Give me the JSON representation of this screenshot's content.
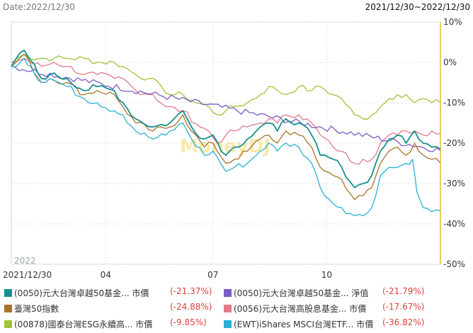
{
  "header": {
    "date_label": "Date:2022/12/30",
    "range_label": "2021/12/30~2022/12/30"
  },
  "watermark": "MoneyDJ",
  "year_label": "2022",
  "chart_data": {
    "type": "line",
    "x_labels": [
      "2021/12/30",
      "04",
      "07",
      "10"
    ],
    "y_ticks": [
      "10%",
      "0%",
      "-10%",
      "-20%",
      "-30%",
      "-40%",
      "-50%"
    ],
    "ylim": [
      -50,
      10
    ],
    "y_unit": "%",
    "grid": true,
    "series": [
      {
        "name": "(0050)元大台灣卓越50基金... 市價",
        "value_label": "(-21.37%)",
        "color": "#178f8f",
        "points": [
          [
            0,
            -1
          ],
          [
            0.03,
            3
          ],
          [
            0.045,
            0.5
          ],
          [
            0.07,
            -4
          ],
          [
            0.09,
            -3
          ],
          [
            0.13,
            -4
          ],
          [
            0.17,
            -7
          ],
          [
            0.2,
            -6
          ],
          [
            0.24,
            -7
          ],
          [
            0.26,
            -10
          ],
          [
            0.29,
            -14
          ],
          [
            0.33,
            -16
          ],
          [
            0.37,
            -15
          ],
          [
            0.4,
            -12
          ],
          [
            0.42,
            -16
          ],
          [
            0.45,
            -19
          ],
          [
            0.47,
            -18
          ],
          [
            0.5,
            -23
          ],
          [
            0.52,
            -21
          ],
          [
            0.55,
            -19
          ],
          [
            0.58,
            -16
          ],
          [
            0.6,
            -15
          ],
          [
            0.62,
            -17
          ],
          [
            0.64,
            -14
          ],
          [
            0.67,
            -15
          ],
          [
            0.7,
            -18
          ],
          [
            0.72,
            -23
          ],
          [
            0.75,
            -24
          ],
          [
            0.77,
            -26
          ],
          [
            0.8,
            -31
          ],
          [
            0.82,
            -30
          ],
          [
            0.84,
            -28
          ],
          [
            0.86,
            -22
          ],
          [
            0.88,
            -19
          ],
          [
            0.9,
            -18
          ],
          [
            0.92,
            -20
          ],
          [
            0.94,
            -17
          ],
          [
            0.96,
            -20
          ],
          [
            0.98,
            -21
          ],
          [
            1,
            -21.4
          ]
        ]
      },
      {
        "name": "(0050)元大台灣卓越50基金... 淨值",
        "value_label": "(-21.79%)",
        "color": "#7b5cc4",
        "points": [
          [
            0,
            -1
          ],
          [
            1,
            -21.8
          ]
        ]
      },
      {
        "name": "臺灣50指數",
        "value_label": "(-24.88%)",
        "color": "#a8742a",
        "points": [
          [
            0,
            -1
          ],
          [
            0.03,
            2
          ],
          [
            0.045,
            -0.5
          ],
          [
            0.07,
            -5
          ],
          [
            0.09,
            -4
          ],
          [
            0.13,
            -5
          ],
          [
            0.17,
            -8
          ],
          [
            0.2,
            -7
          ],
          [
            0.24,
            -8
          ],
          [
            0.26,
            -11
          ],
          [
            0.29,
            -15
          ],
          [
            0.33,
            -17
          ],
          [
            0.37,
            -16
          ],
          [
            0.4,
            -13
          ],
          [
            0.42,
            -17
          ],
          [
            0.45,
            -21
          ],
          [
            0.47,
            -20
          ],
          [
            0.5,
            -25
          ],
          [
            0.52,
            -24
          ],
          [
            0.55,
            -22
          ],
          [
            0.58,
            -19
          ],
          [
            0.6,
            -18
          ],
          [
            0.62,
            -20
          ],
          [
            0.64,
            -17
          ],
          [
            0.67,
            -18
          ],
          [
            0.7,
            -21
          ],
          [
            0.72,
            -26
          ],
          [
            0.75,
            -28
          ],
          [
            0.77,
            -29
          ],
          [
            0.8,
            -34
          ],
          [
            0.82,
            -33
          ],
          [
            0.84,
            -31
          ],
          [
            0.86,
            -25
          ],
          [
            0.88,
            -22
          ],
          [
            0.9,
            -21
          ],
          [
            0.92,
            -23
          ],
          [
            0.94,
            -20
          ],
          [
            0.96,
            -23
          ],
          [
            0.98,
            -24
          ],
          [
            1,
            -24.9
          ]
        ]
      },
      {
        "name": "(0056)元大台灣高股息基金... 市價",
        "value_label": "(-17.67%)",
        "color": "#e07a8a",
        "points": [
          [
            0,
            0
          ],
          [
            0.03,
            1
          ],
          [
            0.045,
            0
          ],
          [
            0.07,
            -1
          ],
          [
            0.1,
            0
          ],
          [
            0.13,
            -1
          ],
          [
            0.17,
            -3
          ],
          [
            0.2,
            -3
          ],
          [
            0.24,
            -4
          ],
          [
            0.26,
            -4
          ],
          [
            0.29,
            -7
          ],
          [
            0.33,
            -8
          ],
          [
            0.36,
            -11
          ],
          [
            0.4,
            -12
          ],
          [
            0.44,
            -16
          ],
          [
            0.46,
            -17
          ],
          [
            0.48,
            -20
          ],
          [
            0.5,
            -18
          ],
          [
            0.52,
            -17
          ],
          [
            0.55,
            -16
          ],
          [
            0.58,
            -15
          ],
          [
            0.6,
            -14
          ],
          [
            0.62,
            -15
          ],
          [
            0.64,
            -13
          ],
          [
            0.67,
            -13
          ],
          [
            0.7,
            -15
          ],
          [
            0.72,
            -18
          ],
          [
            0.75,
            -21
          ],
          [
            0.77,
            -22
          ],
          [
            0.8,
            -25
          ],
          [
            0.82,
            -24
          ],
          [
            0.84,
            -24
          ],
          [
            0.86,
            -20
          ],
          [
            0.88,
            -18
          ],
          [
            0.9,
            -18
          ],
          [
            0.92,
            -17
          ],
          [
            0.94,
            -17
          ],
          [
            0.96,
            -18
          ],
          [
            0.98,
            -17
          ],
          [
            1,
            -17.7
          ]
        ]
      },
      {
        "name": "(00878)國泰台灣ESG永續高... 市價",
        "value_label": "(-9.85%)",
        "color": "#a0c43a",
        "points": [
          [
            0,
            0
          ],
          [
            0.03,
            2
          ],
          [
            0.045,
            1
          ],
          [
            0.07,
            1
          ],
          [
            0.1,
            1
          ],
          [
            0.13,
            1
          ],
          [
            0.17,
            1
          ],
          [
            0.2,
            0
          ],
          [
            0.24,
            0
          ],
          [
            0.26,
            -1
          ],
          [
            0.29,
            -3
          ],
          [
            0.32,
            -4
          ],
          [
            0.35,
            -6
          ],
          [
            0.37,
            -8
          ],
          [
            0.4,
            -8
          ],
          [
            0.43,
            -10
          ],
          [
            0.46,
            -11
          ],
          [
            0.48,
            -13
          ],
          [
            0.5,
            -12
          ],
          [
            0.52,
            -11
          ],
          [
            0.55,
            -10
          ],
          [
            0.58,
            -8
          ],
          [
            0.6,
            -6
          ],
          [
            0.62,
            -7
          ],
          [
            0.64,
            -8
          ],
          [
            0.67,
            -6
          ],
          [
            0.7,
            -7
          ],
          [
            0.72,
            -6
          ],
          [
            0.75,
            -8
          ],
          [
            0.77,
            -9
          ],
          [
            0.8,
            -13
          ],
          [
            0.82,
            -14
          ],
          [
            0.84,
            -13
          ],
          [
            0.86,
            -11
          ],
          [
            0.88,
            -9
          ],
          [
            0.9,
            -8
          ],
          [
            0.92,
            -8
          ],
          [
            0.94,
            -10
          ],
          [
            0.96,
            -9
          ],
          [
            0.98,
            -10
          ],
          [
            1,
            -9.9
          ]
        ]
      },
      {
        "name": "(EWT)iShares MSCI台灣ETF... 市價",
        "value_label": "(-36.82%)",
        "color": "#2ab0d6",
        "points": [
          [
            0,
            -1
          ],
          [
            0.03,
            1
          ],
          [
            0.045,
            -1
          ],
          [
            0.07,
            -5
          ],
          [
            0.09,
            -4
          ],
          [
            0.13,
            -6
          ],
          [
            0.17,
            -9
          ],
          [
            0.2,
            -10
          ],
          [
            0.24,
            -12
          ],
          [
            0.26,
            -13
          ],
          [
            0.29,
            -17
          ],
          [
            0.33,
            -19
          ],
          [
            0.36,
            -18
          ],
          [
            0.4,
            -15
          ],
          [
            0.42,
            -19
          ],
          [
            0.45,
            -23
          ],
          [
            0.47,
            -22
          ],
          [
            0.5,
            -27
          ],
          [
            0.52,
            -26
          ],
          [
            0.55,
            -25
          ],
          [
            0.58,
            -22
          ],
          [
            0.6,
            -20
          ],
          [
            0.62,
            -22
          ],
          [
            0.64,
            -20
          ],
          [
            0.67,
            -21
          ],
          [
            0.7,
            -25
          ],
          [
            0.72,
            -31
          ],
          [
            0.75,
            -35
          ],
          [
            0.77,
            -36
          ],
          [
            0.8,
            -38
          ],
          [
            0.82,
            -38
          ],
          [
            0.84,
            -36
          ],
          [
            0.86,
            -28
          ],
          [
            0.88,
            -26
          ],
          [
            0.9,
            -26
          ],
          [
            0.92,
            -25
          ],
          [
            0.935,
            -24
          ],
          [
            0.945,
            -32
          ],
          [
            0.96,
            -36
          ],
          [
            0.98,
            -37
          ],
          [
            1,
            -36.8
          ]
        ]
      }
    ]
  }
}
